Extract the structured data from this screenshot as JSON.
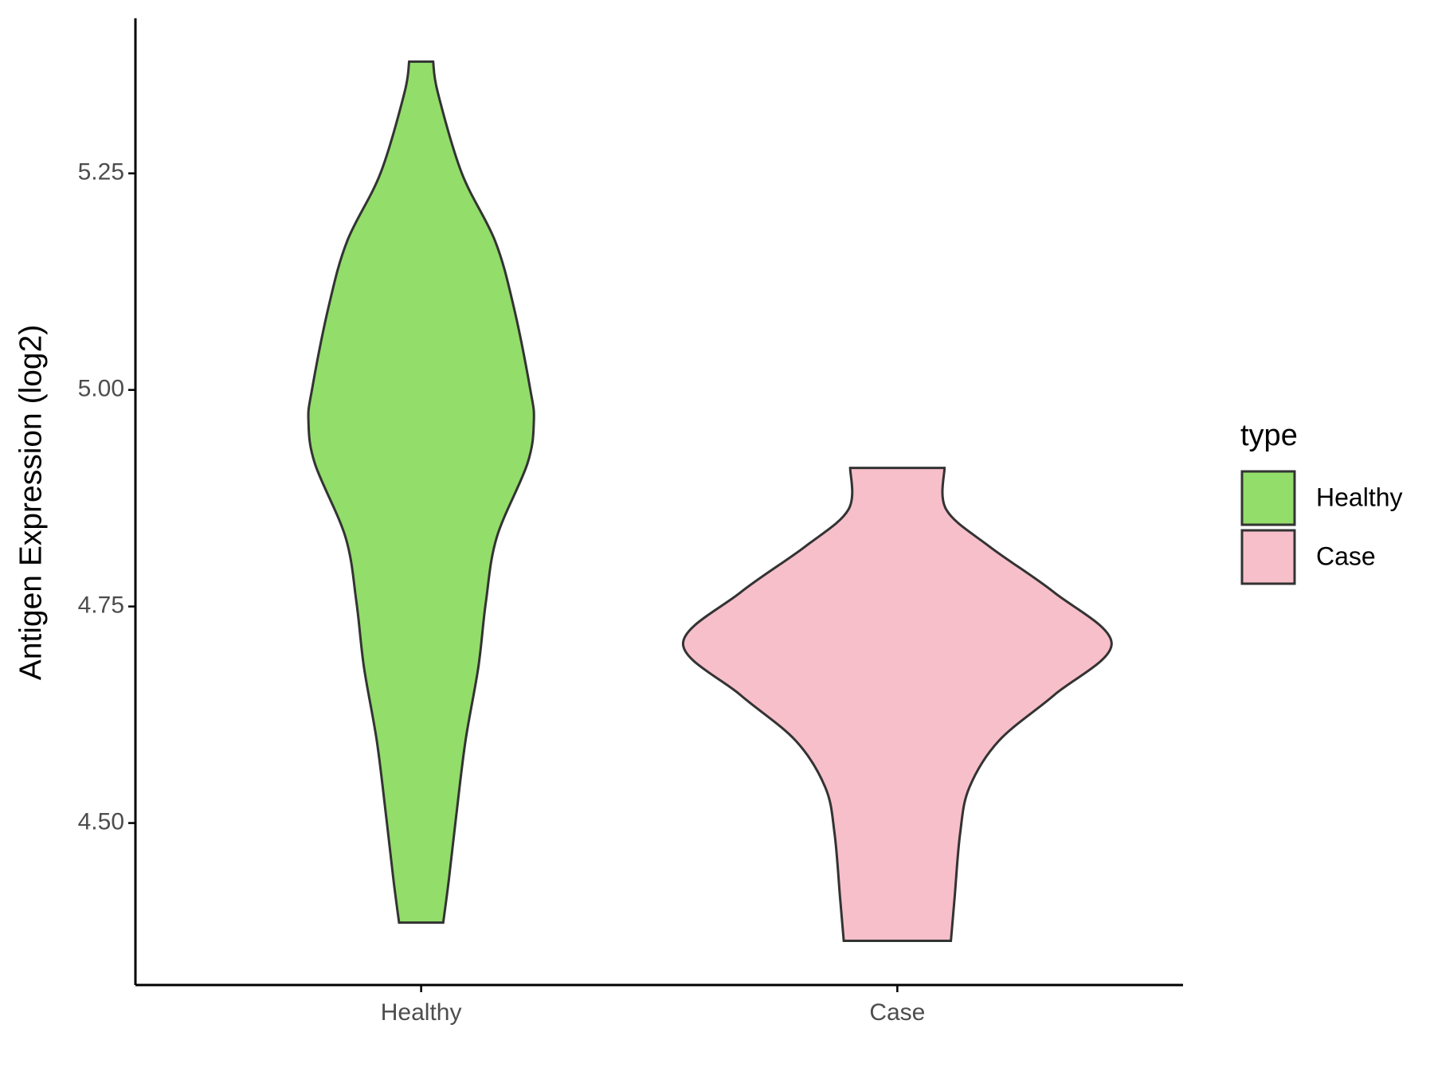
{
  "chart_data": {
    "type": "violin",
    "y_label": "Antigen Expression (log2)",
    "categories": [
      "Healthy",
      "Case"
    ],
    "legend_title": "type",
    "legend_position": "right",
    "ylim": [
      4.313,
      5.429
    ],
    "yticks": [
      {
        "value": 4.5,
        "label": "4.50"
      },
      {
        "value": 4.75,
        "label": "4.75"
      },
      {
        "value": 5.0,
        "label": "5.00"
      },
      {
        "value": 5.25,
        "label": "5.25"
      }
    ],
    "series": [
      {
        "name": "Healthy",
        "color": "#93dd6a",
        "y": [
          5.379,
          5.343,
          5.25,
          5.172,
          5.097,
          5.001,
          4.964,
          4.915,
          4.83,
          4.755,
          4.68,
          4.595,
          4.509,
          4.434,
          4.385
        ],
        "width": [
          0.056,
          0.078,
          0.19,
          0.345,
          0.431,
          0.509,
          0.526,
          0.496,
          0.353,
          0.302,
          0.267,
          0.207,
          0.164,
          0.129,
          0.103
        ]
      },
      {
        "name": "Case",
        "color": "#f7bfca",
        "y": [
          4.91,
          4.862,
          4.819,
          4.766,
          4.707,
          4.648,
          4.595,
          4.541,
          4.488,
          4.413,
          4.364
        ],
        "width": [
          0.22,
          0.228,
          0.431,
          0.733,
          1,
          0.733,
          0.474,
          0.336,
          0.293,
          0.267,
          0.25
        ]
      }
    ]
  }
}
